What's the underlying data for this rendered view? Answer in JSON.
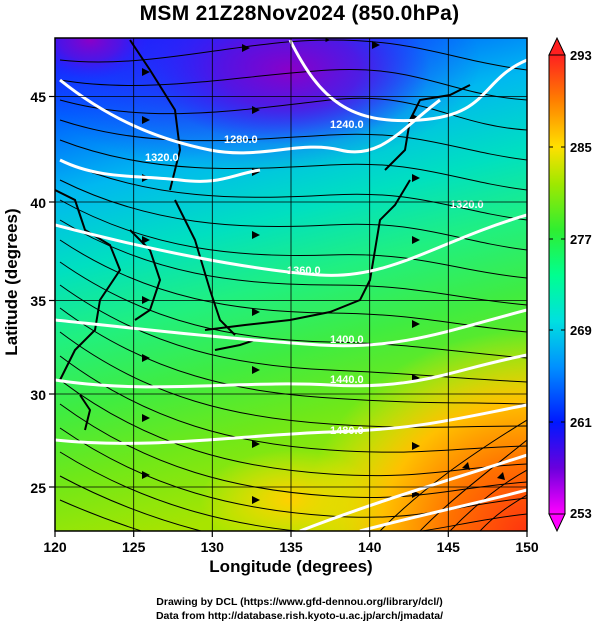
{
  "title": "MSM 21Z28Nov2024 (850.0hPa)",
  "xlabel": "Longitude (degrees)",
  "ylabel": "Latitude  (degrees)",
  "credits": {
    "line1": "Drawing by DCL (https://www.gfd-dennou.org/library/dcl/)",
    "line2": "Data from http://database.rish.kyoto-u.ac.jp/arch/jmadata/"
  },
  "x_ticks": [
    "120",
    "125",
    "130",
    "135",
    "140",
    "145",
    "150"
  ],
  "y_ticks": [
    "25",
    "30",
    "35",
    "40",
    "45"
  ],
  "colorbar": {
    "ticks": [
      "293",
      "285",
      "277",
      "269",
      "261",
      "253"
    ],
    "min": 253,
    "max": 293,
    "palette": [
      "#ff00ff",
      "#6a00dd",
      "#0018ff",
      "#0090ff",
      "#00e0e0",
      "#00ff90",
      "#30ee30",
      "#a0e800",
      "#ffe000",
      "#ff8000",
      "#ff2020"
    ]
  },
  "contour_labels": [
    "1240.0",
    "1280.0",
    "1320.0",
    "1360.0",
    "1400.0",
    "1440.0",
    "1480.0",
    "1320.0"
  ],
  "chart_data": {
    "type": "heatmap",
    "title": "MSM 21Z28Nov2024 (850.0hPa)",
    "xlabel": "Longitude (degrees)",
    "ylabel": "Latitude  (degrees)",
    "xlim": [
      120,
      150
    ],
    "ylim": [
      22.5,
      47.6
    ],
    "color_range": [
      253,
      293
    ],
    "contour_values": [
      1240.0,
      1280.0,
      1320.0,
      1360.0,
      1400.0,
      1440.0,
      1480.0
    ]
  }
}
